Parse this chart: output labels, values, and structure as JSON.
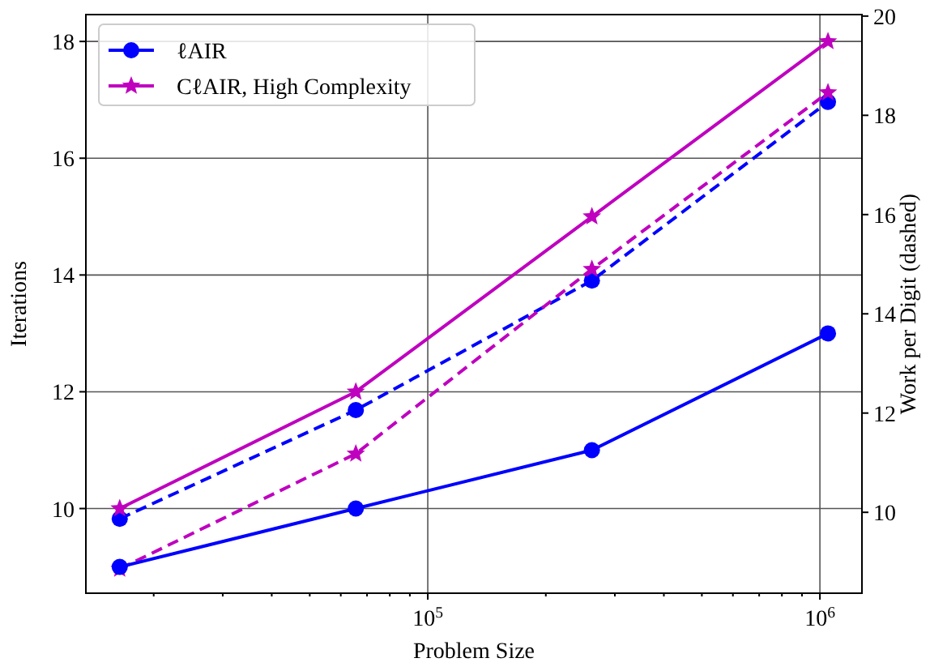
{
  "chart_data": {
    "type": "line",
    "xlabel": "Problem Size",
    "ylabel": "Iterations",
    "y2label": "Work per Digit (dashed)",
    "log": "x",
    "x": [
      16384,
      65536,
      262144,
      1048576
    ],
    "xlim": [
      13430,
      1280000
    ],
    "xticks": [
      {
        "value": 20000,
        "label": null
      },
      {
        "value": 30000,
        "label": null
      },
      {
        "value": 40000,
        "label": null
      },
      {
        "value": 50000,
        "label": null
      },
      {
        "value": 60000,
        "label": null
      },
      {
        "value": 70000,
        "label": null
      },
      {
        "value": 80000,
        "label": null
      },
      {
        "value": 90000,
        "label": null
      },
      {
        "value": 100000,
        "label": "10$^{5}$"
      },
      {
        "value": 200000,
        "label": null
      },
      {
        "value": 300000,
        "label": null
      },
      {
        "value": 400000,
        "label": null
      },
      {
        "value": 500000,
        "label": null
      },
      {
        "value": 600000,
        "label": null
      },
      {
        "value": 700000,
        "label": null
      },
      {
        "value": 800000,
        "label": null
      },
      {
        "value": 900000,
        "label": null
      },
      {
        "value": 1000000,
        "label": "10$^{6}$"
      }
    ],
    "ylim": [
      8.55,
      18.46
    ],
    "yticks": [
      10,
      12,
      14,
      16,
      18
    ],
    "y2lim": [
      8.37,
      20.03
    ],
    "y2ticks": [
      10,
      12,
      14,
      16,
      18,
      20
    ],
    "grid": true,
    "legend": "top left",
    "series": [
      {
        "name": "ℓAIR",
        "color": "#0000ff",
        "values": [
          9,
          10,
          11,
          13
        ],
        "marker": "circle",
        "line_style": "solid"
      },
      {
        "name": "CℓAIR, High Complexity",
        "color": "#bf00bf",
        "values": [
          10,
          12,
          15,
          18
        ],
        "marker": "star",
        "line_style": "solid"
      },
      {
        "color": "#0000ff",
        "values": [
          9.87,
          12.06,
          14.67,
          18.27
        ],
        "marker": "circle",
        "line_style": "dashed",
        "axis": "y2"
      },
      {
        "color": "#bf00bf",
        "values": [
          8.86,
          11.18,
          14.9,
          18.46
        ],
        "marker": "star",
        "line_style": "dashed",
        "axis": "y2"
      }
    ]
  }
}
